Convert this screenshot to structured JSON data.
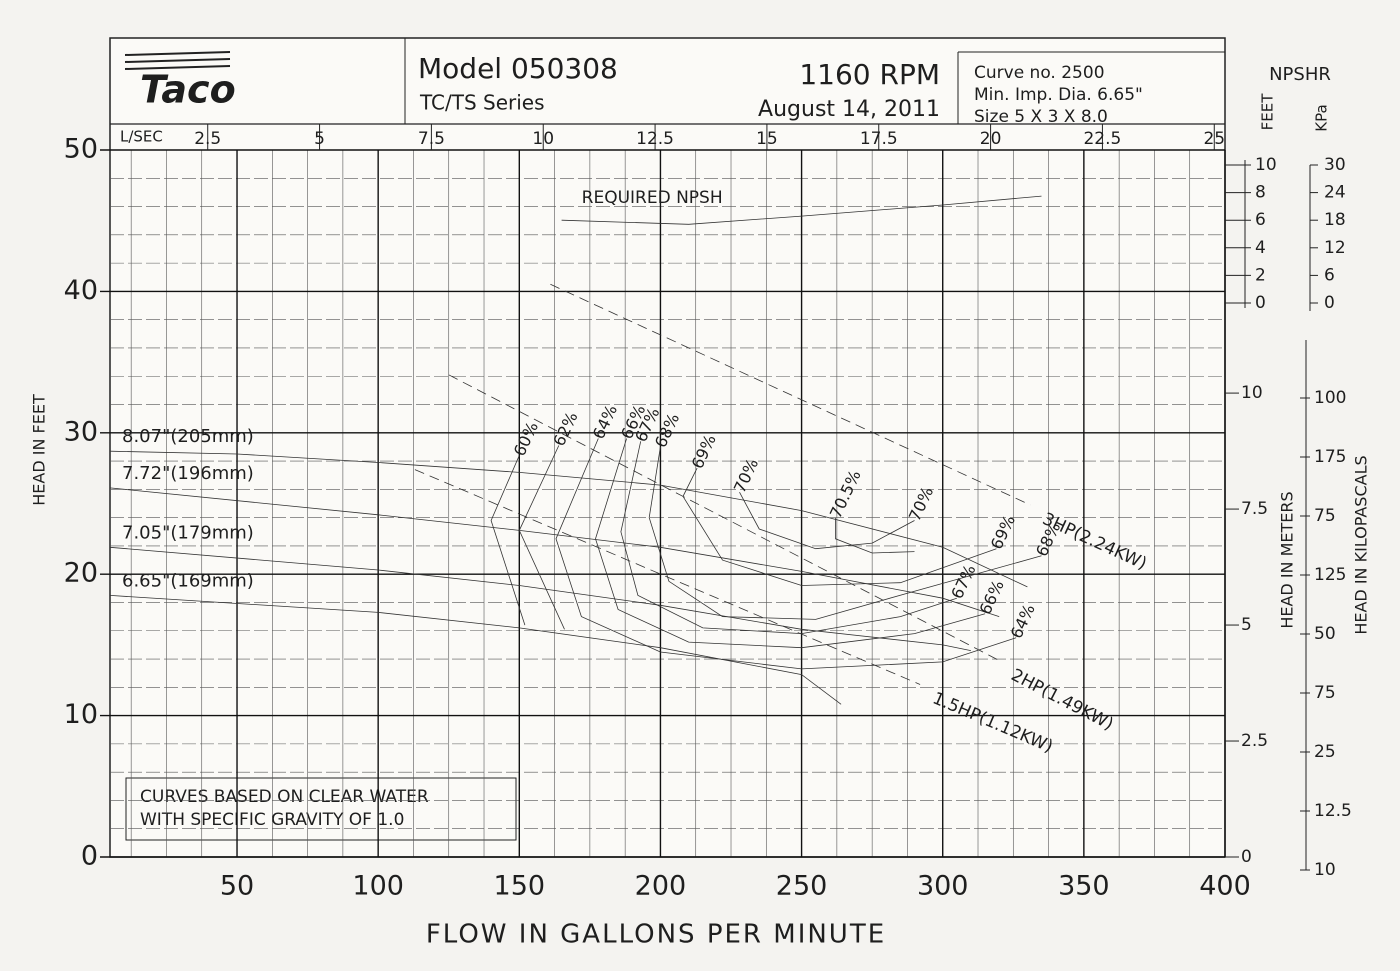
{
  "chart_data": {
    "type": "line",
    "logo": "Taco",
    "title": "Model 050308",
    "subtitle": "TC/TS Series",
    "speed": "1160 RPM",
    "date": "August 14, 2011",
    "curve_info": [
      "Curve no. 2500",
      "Min. Imp. Dia. 6.65\"",
      "Size 5 X 3 X 8.0"
    ],
    "note": [
      "CURVES BASED ON CLEAR WATER",
      "WITH SPECIFIC GRAVITY OF 1.0"
    ],
    "xlabel": "FLOW IN GALLONS PER MINUTE",
    "ylabel": "HEAD IN FEET",
    "y2label": "HEAD IN METERS",
    "kpa_label": "HEAD IN KILOPASCALS",
    "xlim": [
      5,
      400
    ],
    "xticks": [
      50,
      100,
      150,
      200,
      250,
      300,
      350,
      400
    ],
    "ylim": [
      0,
      50
    ],
    "yticks": [
      0,
      10,
      20,
      30,
      40,
      50
    ],
    "y2lim": [
      0,
      15.24
    ],
    "y2ticks": [
      0,
      2.5,
      5,
      7.5,
      10
    ],
    "kpa_ticks": [
      100,
      175,
      75,
      125,
      50,
      75,
      25,
      12.5,
      10
    ],
    "minor_grid": {
      "x_step": 12.5,
      "y_step": 2
    },
    "top_axis": {
      "label": "L/SEC",
      "lim": [
        0.3155,
        25.24
      ],
      "ticks": [
        2.5,
        5,
        7.5,
        10,
        12.5,
        15,
        17.5,
        20,
        22.5,
        25
      ]
    },
    "npsh_axis": {
      "title": "NPSHR",
      "label": "FEET",
      "lim": [
        0,
        10
      ],
      "ticks": [
        0,
        2,
        4,
        6,
        8,
        10
      ],
      "kpa_label": "KPa",
      "kpa_lim": [
        0,
        30
      ],
      "kpa_ticks": [
        0,
        6,
        12,
        18,
        24,
        30
      ]
    },
    "npsh": {
      "name": "REQUIRED NPSH",
      "x": [
        165,
        210,
        250,
        300,
        335
      ],
      "values": [
        6.0,
        5.7,
        6.3,
        7.1,
        7.75
      ]
    },
    "series": [
      {
        "name": "8.07\"(205mm)",
        "x": [
          5,
          50,
          100,
          150,
          200,
          250,
          300,
          330
        ],
        "values": [
          28.7,
          28.5,
          27.9,
          27.2,
          26.3,
          24.5,
          21.9,
          19.1
        ]
      },
      {
        "name": "7.72\"(196mm)",
        "x": [
          5,
          100,
          150,
          200,
          250,
          300,
          320
        ],
        "values": [
          26.1,
          24.2,
          23.1,
          21.9,
          20.2,
          18.3,
          17.0
        ]
      },
      {
        "name": "7.05\"(179mm)",
        "x": [
          5,
          100,
          150,
          200,
          250,
          300,
          310
        ],
        "values": [
          21.9,
          20.3,
          19.2,
          17.8,
          16.1,
          15.0,
          14.6
        ]
      },
      {
        "name": "6.65\"(169mm)",
        "x": [
          5,
          100,
          150,
          200,
          250,
          264
        ],
        "values": [
          18.5,
          17.3,
          16.2,
          14.8,
          12.9,
          10.8
        ]
      }
    ],
    "efficiency": [
      {
        "label": "60%",
        "x": [
          150,
          140,
          152
        ],
        "values": [
          28.4,
          23.8,
          16.4
        ]
      },
      {
        "label": "62%",
        "x": [
          164,
          150,
          166
        ],
        "values": [
          29.1,
          23.1,
          16.1
        ]
      },
      {
        "label": "64%",
        "x": [
          178,
          163,
          172,
          200,
          250,
          300,
          326
        ],
        "values": [
          29.6,
          22.5,
          17,
          14.5,
          13.3,
          13.8,
          15.5
        ],
        "end_label": "64%"
      },
      {
        "label": "66%",
        "x": [
          188,
          177,
          185,
          210,
          250,
          290,
          315
        ],
        "values": [
          29.6,
          22.5,
          17.5,
          15.2,
          14.8,
          15.8,
          17.2
        ],
        "end_label": "66%"
      },
      {
        "label": "67%",
        "x": [
          193,
          186,
          192,
          215,
          250,
          285,
          305
        ],
        "values": [
          29.4,
          23,
          18.5,
          16.2,
          15.8,
          17,
          18.3
        ],
        "end_label": "67%"
      },
      {
        "label": "68%",
        "x": [
          200,
          196,
          203,
          222,
          255,
          290,
          335
        ],
        "values": [
          29,
          24,
          19.5,
          17,
          16.8,
          18.8,
          21.3
        ],
        "end_label": "68%"
      },
      {
        "label": "69%",
        "x": [
          213,
          208,
          222,
          250,
          285,
          319
        ],
        "values": [
          27.5,
          25.5,
          21,
          19.2,
          19.4,
          21.8
        ],
        "end_label": "69%"
      },
      {
        "label": "70%",
        "x": [
          228,
          235,
          255,
          275,
          290
        ],
        "values": [
          25.8,
          23.2,
          21.8,
          22.2,
          23.8
        ],
        "end_label": "70%"
      },
      {
        "label": "70.5%",
        "x": [
          262,
          262,
          275,
          290
        ],
        "values": [
          24,
          22.5,
          21.5,
          21.6
        ]
      }
    ],
    "hp_lines": [
      {
        "name": "3HP(2.24KW)",
        "x": [
          161,
          331
        ],
        "values": [
          40.5,
          24.9
        ]
      },
      {
        "name": "2HP(1.49KW)",
        "x": [
          125,
          320
        ],
        "values": [
          34.1,
          13.9
        ]
      },
      {
        "name": "1.5HP(1.12KW)",
        "x": [
          113,
          292
        ],
        "values": [
          27.4,
          12.2
        ]
      }
    ]
  }
}
